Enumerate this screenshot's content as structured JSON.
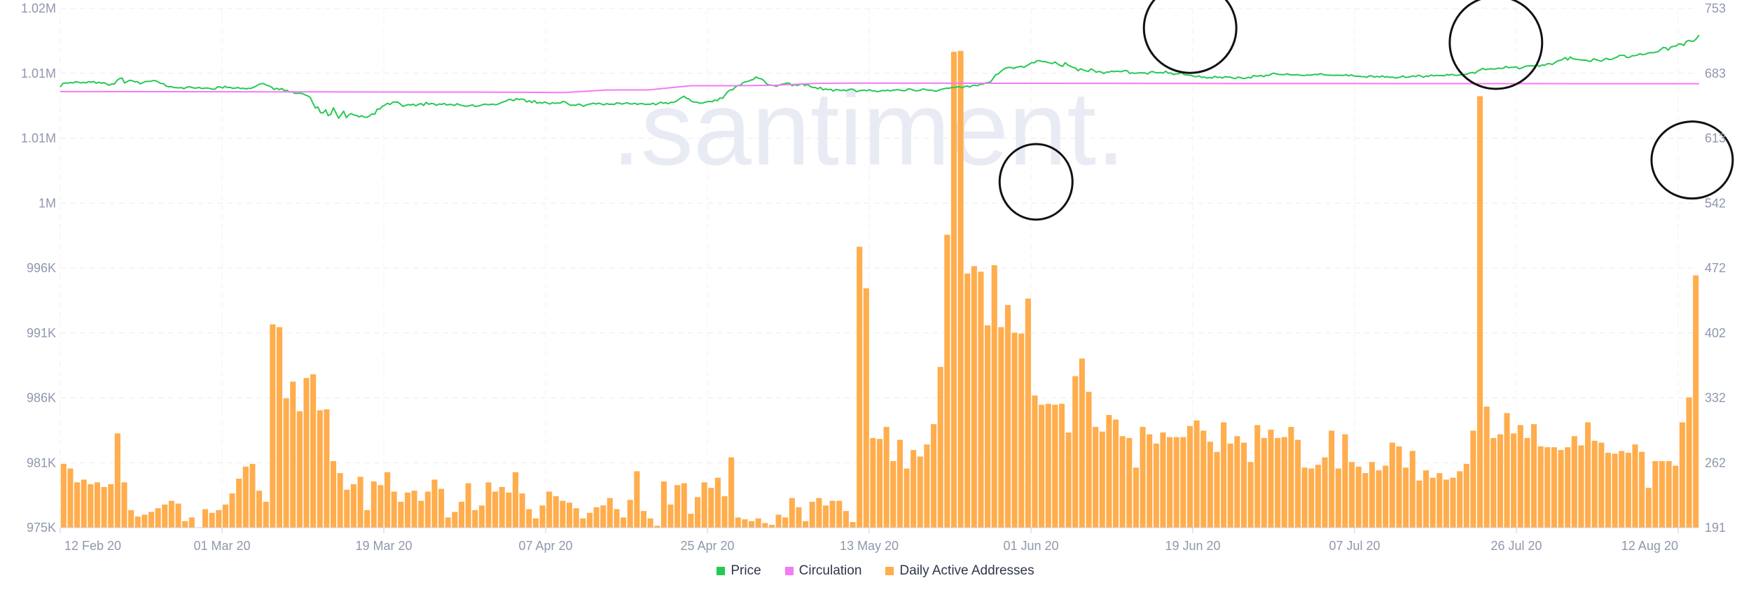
{
  "watermark": ".santiment.",
  "legend": [
    {
      "name": "Price",
      "color": "#26c953"
    },
    {
      "name": "Circulation",
      "color": "#f27bf6"
    },
    {
      "name": "Daily Active Addresses",
      "color": "#ffad4d"
    }
  ],
  "chart_data": {
    "type": "bar-line-combo",
    "x_ticks": [
      "12 Feb 20",
      "01 Mar 20",
      "19 Mar 20",
      "07 Apr 20",
      "25 Apr 20",
      "13 May 20",
      "01 Jun 20",
      "19 Jun 20",
      "07 Jul 20",
      "26 Jul 20",
      "12 Aug 20"
    ],
    "x_range": [
      "2020-02-12",
      "2020-08-12"
    ],
    "y_left_ticks": [
      "975K",
      "981K",
      "986K",
      "991K",
      "996K",
      "1M",
      "1.01M",
      "1.01M",
      "1.02M"
    ],
    "y_right_ticks": [
      "191",
      "262",
      "332",
      "402",
      "472",
      "542",
      "613",
      "683",
      "753"
    ],
    "y_right_range": [
      191,
      753
    ],
    "grid": true,
    "legend_position": "bottom-center",
    "series": [
      {
        "name": "Daily Active Addresses",
        "axis": "right",
        "render": "bar",
        "color": "#ffad4d",
        "values": [
          260,
          255,
          240,
          243,
          238,
          240,
          235,
          238,
          293,
          240,
          210,
          203,
          205,
          208,
          212,
          216,
          220,
          217,
          198,
          202,
          191,
          211,
          207,
          210,
          216,
          228,
          244,
          257,
          260,
          231,
          219,
          411,
          408,
          331,
          349,
          317,
          353,
          357,
          318,
          319,
          263,
          250,
          232,
          238,
          246,
          210,
          241,
          237,
          251,
          230,
          219,
          229,
          231,
          220,
          230,
          243,
          233,
          202,
          208,
          219,
          239,
          210,
          215,
          240,
          230,
          235,
          229,
          251,
          228,
          211,
          201,
          215,
          230,
          225,
          220,
          218,
          212,
          201,
          207,
          213,
          215,
          223,
          211,
          202,
          221,
          252,
          209,
          201,
          193,
          241,
          216,
          237,
          239,
          206,
          224,
          240,
          234,
          245,
          225,
          267,
          202,
          200,
          198,
          201,
          196,
          194,
          205,
          202,
          223,
          213,
          198,
          219,
          223,
          215,
          220,
          220,
          209,
          197,
          495,
          450,
          288,
          287,
          300,
          263,
          286,
          255,
          275,
          268,
          281,
          303,
          365,
          508,
          706,
          707,
          466,
          474,
          468,
          410,
          475,
          408,
          432,
          402,
          401,
          439,
          334,
          324,
          325,
          324,
          325,
          294,
          355,
          374,
          338,
          300,
          295,
          313,
          308,
          290,
          288,
          256,
          300,
          292,
          282,
          294,
          289,
          289,
          289,
          301,
          307,
          296,
          284,
          273,
          305,
          282,
          290,
          283,
          262,
          302,
          288,
          297,
          288,
          289,
          300,
          286,
          256,
          255,
          259,
          267,
          296,
          255,
          292,
          262,
          257,
          250,
          262,
          253,
          258,
          283,
          279,
          256,
          274,
          242,
          253,
          245,
          250,
          243,
          245,
          252,
          260,
          296,
          658,
          322,
          288,
          292,
          315,
          293,
          302,
          288,
          303,
          279,
          278,
          278,
          275,
          278,
          290,
          280,
          305,
          285,
          283,
          272,
          271,
          274,
          272,
          281,
          273,
          234,
          263,
          263,
          263,
          258,
          305,
          332,
          464
        ]
      }
    ],
    "series_lines": [
      {
        "name": "Price",
        "axis": "left",
        "render": "line",
        "color": "#26c953",
        "values": [
          996.9,
          1005.0,
          1006.5,
          1005.6,
          1007.3,
          1006.1,
          1009.3,
          1008.0,
          1006.4,
          1007.6,
          1006.5,
          1009.2,
          1008.1,
          1009.5,
          1005.6,
          1007.8,
          1005.6,
          1006.9,
          1004.0,
          1001.1,
          1004.0,
          1003.8,
          1011.8,
          1016.1,
          1017.3,
          1006.2,
          1009.5,
          1012.2,
          1011.3,
          1008.8,
          1009.4,
          1004.3,
          1006.7,
          1009.3,
          1010.0,
          1010.0,
          1011.4,
          1011.4,
          1008.3,
          1005.2,
          1004.7,
          999.7,
          997.5,
          998.3,
          995.8,
          995.7,
          995.0,
          995.8,
          993.2,
          996.3,
          997.9,
          996.3,
          994.5,
          995.1,
          996.0,
          993.5,
          994.4,
          994.8,
          993.9,
          992.3,
          992.0,
          997.5,
          997.3,
          994.9,
          998.7,
          995.8,
          996.2,
          994.0,
          994.7,
          995.9,
          993.5,
          994.4,
          992.9,
          994.1,
          994.0,
          996.4,
          999.1,
          1002.7,
          1004.6,
          1004.9,
          1001.3,
          999.6,
          996.9,
          991.3,
          994.3,
          991.2,
          993.9,
          988.9,
          989.7,
          985.3,
          986.4,
          982.8,
          982.6,
          983.2,
          982.1,
          979.4,
          977.1,
          973.6,
          961.1,
          949.6,
          951.8,
          939.1,
          938.5,
          945.3,
          932.4,
          935.5,
          950.0,
          938.3,
          926.5,
          934.5,
          942.4,
          927.8,
          934.3,
          936.9,
          933.5,
          932.8,
          929.4,
          932.1,
          928.9,
          928.6,
          931.4,
          936.3,
          935.2,
          947.1,
          947.3,
          953.4,
          956.3,
          960.3,
          957.6,
          962.4,
          963.4,
          962.7,
          958.5,
          953.3,
          955.3,
          957.4,
          956.3,
          958.1,
          954.5,
          957.8,
          959.8,
          955.4,
          962.4,
          957.9,
          959.9,
          959.0,
          955.4,
          958.6,
          957.8,
          959.9,
          956.2,
          957.7,
          957.4,
          955.1,
          959.4,
          956.6,
          955.4,
          953.9,
          953.7,
          955.2,
          956.8,
          953.1,
          953.8,
          955.2,
          957.4,
          958.3,
          956.8,
          957.6,
          958.3,
          956.8,
          958.6,
          961.4,
          963.7,
          965.4,
          969.0,
          968.5,
          966.1,
          971.1,
          968.6,
          969.8,
          969.2,
          963.3,
          966.0,
          961.8,
          966.4,
          960.4,
          962.2,
          960.5,
          963.2,
          960.7,
          958.6,
          961.5,
          960.1,
          961.1,
          960.5,
          964.4,
          963.5,
          959.1,
          955.6,
          956.3,
          955.6,
          958.4,
          957.0,
          953.3,
          956.3,
          958.0,
          959.0,
          960.5,
          958.6,
          960.7,
          958.6,
          956.5,
          959.6,
          958.0,
          958.2,
          957.7,
          961.3,
          960.7,
          958.4,
          960.1,
          961.5,
          959.0,
          958.7,
          960.4,
          957.6,
          959.5,
          959.5,
          957.5,
          958.3,
          957.8,
          960.7,
          957.0,
          959.6,
          962.9,
          960.4,
          961.6,
          959.4,
          962.6,
          962.4,
          964.7,
          969.0,
          972.8,
          976.2,
          971.8,
          970.0,
          964.5,
          963.0,
          962.9,
          960.8,
          960.3,
          962.1,
          963.8,
          964.3,
          963.9,
          967.8,
          966.1,
          972.4,
          971.2,
          979.1,
          986.4,
          990.3,
          991.1,
          997.1,
          1000.7,
          1001.6,
          1007.2,
          1008.7,
          1010.2,
          1012.7,
          1014.3,
          1019.9,
          1016.9,
          1015.6,
          1012.2,
          1004.7,
          1001.8,
          1001.5,
          1000.1,
          998.6,
          1001.7,
          1003.2,
          1004.5,
          1006.3,
          1005.5,
          1000.0,
          1002.5,
          1000.6,
          1002.8,
          1004.5,
          1000.4,
          1003.4,
          998.4,
          996.2,
          996.1,
          993.0,
          996.4,
          990.6,
          992.8,
          991.0,
          992.0,
          987.9,
          991.5,
          990.7,
          989.0,
          990.5,
          988.7,
          991.0,
          992.5,
          990.8,
          986.5,
          988.5,
          989.5,
          990.0,
          988.6,
          991.2,
          988.4,
          988.4,
          986.5,
          987.3,
          989.4,
          988.5,
          990.3,
          988.3,
          989.8,
          990.5,
          991.2,
          989.9,
          988.7,
          988.9,
          992.9,
          992.4,
          990.0,
          988.4,
          988.7,
          990.5,
          993.1,
          990.7,
          990.1,
          990.1,
          988.4,
          987.6,
          990.1,
          992.0,
          993.1,
          994.6,
          994.1,
          996.2,
          995.7,
          997.5,
          997.6,
          995.3,
          998.2,
          999.4,
          997.0,
          1000.5,
          1001.3,
          999.9,
          1003.3,
          1003.3,
          1006.3,
          1007.2,
          1008.5,
          1016.3,
          1024.9,
          1026.7,
          1032.3,
          1037.0,
          1040.1,
          1041.4,
          1041.3,
          1039.1,
          1041.7,
          1043.0,
          1043.8,
          1041.4,
          1045.2,
          1048.5,
          1052.3,
          1051.8,
          1056.7,
          1056.7,
          1054.7,
          1054.7,
          1052.9,
          1051.8,
          1050.0,
          1053.9,
          1049.5,
          1046.0,
          1043.8,
          1052.2,
          1046.7,
          1044.1,
          1041.6,
          1039.8,
          1034.0,
          1038.4,
          1035.6,
          1033.6,
          1032.4,
          1038.2,
          1035.1,
          1030.5,
          1032.3,
          1031.2,
          1027.5,
          1031.0,
          1030.7,
          1033.1,
          1031.8,
          1033.1,
          1032.1,
          1032.1,
          1034.3,
          1034.1,
          1027.8,
          1029.2,
          1028.0,
          1028.7,
          1029.4,
          1029.1,
          1028.9,
          1026.7,
          1031.2,
          1032.1,
          1029.7,
          1029.2,
          1029.9,
          1028.6,
          1032.8,
          1028.5,
          1028.9,
          1025.4,
          1026.9,
          1027.0,
          1030.3,
          1025.5,
          1024.3,
          1023.9,
          1023.2,
          1020.9,
          1020.5,
          1022.3,
          1018.5,
          1019.8,
          1017.2,
          1018.4,
          1017.4,
          1021.3,
          1018.7,
          1019.6,
          1017.4,
          1020.6,
          1019.6,
          1019.6,
          1017.4,
          1016.0,
          1019.5,
          1018.6,
          1016.4,
          1017.1,
          1019.0,
          1017.5,
          1022.9,
          1022.0,
          1021.8,
          1023.3,
          1020.4,
          1024.0,
          1023.2,
          1026.8,
          1028.5,
          1026.5,
          1025.3,
          1025.1,
          1025.0,
          1027.0,
          1025.0,
          1024.4,
          1024.5,
          1025.0,
          1024.0,
          1023.1,
          1023.3,
          1024.4,
          1023.7,
          1024.9,
          1025.5,
          1024.9,
          1027.4,
          1025.6,
          1024.3,
          1023.7,
          1024.0,
          1023.4,
          1023.6,
          1023.7,
          1023.6,
          1023.3,
          1025.1,
          1022.4,
          1024.7,
          1022.2,
          1021.4,
          1021.6,
          1020.6,
          1020.5,
          1019.0,
          1022.3,
          1022.2,
          1019.3,
          1021.3,
          1019.5,
          1022.4,
          1019.4,
          1020.8,
          1018.8,
          1019.6,
          1017.5,
          1018.4,
          1019.2,
          1022.3,
          1018.8,
          1019.4,
          1020.4,
          1022.3,
          1020.9,
          1023.8,
          1022.1,
          1019.0,
          1022.0,
          1021.2,
          1024.4,
          1022.1,
          1023.6,
          1022.9,
          1023.1,
          1022.6,
          1025.1,
          1024.2,
          1025.9,
          1023.7,
          1023.3,
          1024.5,
          1024.7,
          1025.4,
          1026.6,
          1029.1,
          1029.9,
          1028.3,
          1033.0,
          1035.7,
          1039.4,
          1036.4,
          1037.4,
          1038.4,
          1037.9,
          1037.9,
          1039.8,
          1039.2,
          1039.5,
          1043.8,
          1040.8,
          1041.7,
          1041.6,
          1042.8,
          1038.4,
          1039.9,
          1042.5,
          1044.7,
          1044.8,
          1045.3,
          1044.3,
          1047.6,
          1043.5,
          1047.1,
          1046.1,
          1049.6,
          1050.0,
          1048.1,
          1052.2,
          1056.2,
          1057.2,
          1059.6,
          1063.8,
          1058.2,
          1065.1,
          1060.9,
          1060.0,
          1059.3,
          1058.4,
          1057.6,
          1058.1,
          1055.7,
          1055.1,
          1061.0,
          1059.0,
          1057.1,
          1055.4,
          1059.1,
          1062.1,
          1059.3,
          1059.6,
          1062.2,
          1064.5,
          1068.4,
          1069.0,
          1068.6,
          1063.8,
          1064.3,
          1068.0,
          1068.0,
          1069.4,
          1072.4,
          1070.2,
          1071.2,
          1073.5,
          1075.0,
          1074.5,
          1075.8,
          1076.9,
          1081.5,
          1086.4,
          1085.9,
          1080.5,
          1087.5,
          1089.0,
          1089.8,
          1094.4,
          1094.6,
          1091.0,
          1100.5,
          1102.5,
          1100.6,
          1101.2,
          1107.2,
          1114.5
        ]
      },
      {
        "name": "Circulation",
        "axis": "left",
        "render": "line",
        "color": "#f27bf6",
        "values": [
          986.8,
          986.7,
          986.6,
          986.5,
          986.4,
          986.2,
          986.1,
          986.0,
          985.7,
          985.6,
          985.5,
          985.1,
          984.5,
          990.4,
          990.5,
          1000.0,
          1000.1,
          1001.0,
          1005.4,
          1005.9,
          1005.8,
          1005.7,
          1005.6,
          1005.5,
          1005.4,
          1005.3,
          1005.2,
          1005.1,
          1005.0,
          1005.0,
          1004.9,
          1004.9,
          1004.8,
          1004.8,
          1004.7,
          1004.7,
          1004.6,
          1004.6,
          1004.5,
          1004.5
        ]
      }
    ],
    "annotations": [
      {
        "shape": "circle",
        "near": "31 May 20"
      },
      {
        "shape": "circle",
        "near": "12 Jun 20"
      },
      {
        "shape": "circle",
        "near": "24 Jul 20"
      },
      {
        "shape": "circle",
        "near": "12 Aug 20"
      }
    ]
  }
}
